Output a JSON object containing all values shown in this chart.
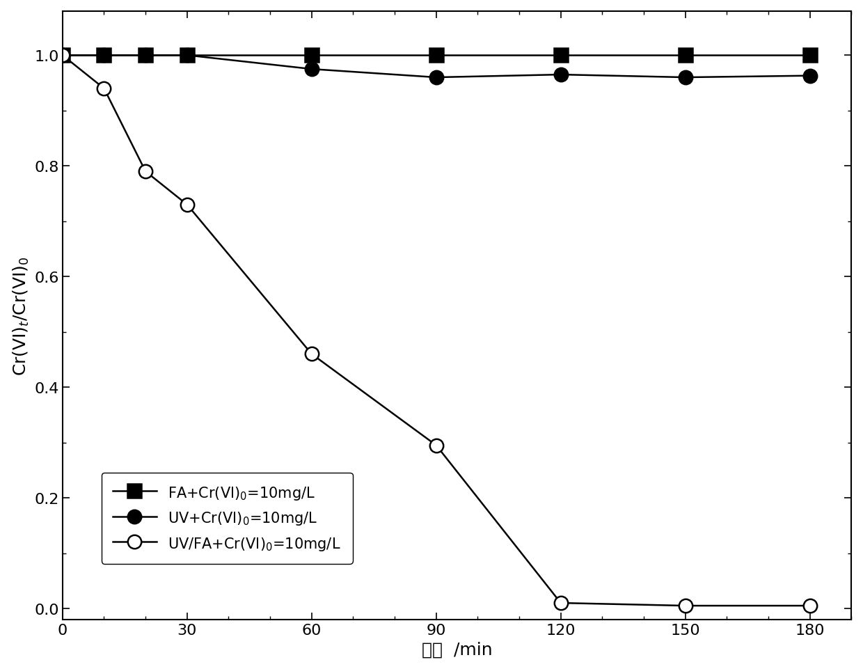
{
  "series": [
    {
      "label": "FA+Cr(VI)$_0$=10mg/L",
      "x": [
        0,
        10,
        20,
        30,
        60,
        90,
        120,
        150,
        180
      ],
      "y": [
        1.0,
        1.0,
        1.0,
        1.0,
        1.0,
        1.0,
        1.0,
        1.0,
        1.0
      ],
      "marker": "s",
      "marker_face": "black",
      "marker_edge": "black",
      "line_color": "black",
      "filled": true
    },
    {
      "label": "UV+Cr(VI)$_0$=10mg/L",
      "x": [
        0,
        10,
        20,
        30,
        60,
        90,
        120,
        150,
        180
      ],
      "y": [
        1.0,
        1.0,
        1.0,
        1.0,
        0.975,
        0.96,
        0.965,
        0.96,
        0.963
      ],
      "marker": "o",
      "marker_face": "black",
      "marker_edge": "black",
      "line_color": "black",
      "filled": true
    },
    {
      "label": "UV/FA+Cr(VI)$_0$=10mg/L",
      "x": [
        0,
        10,
        20,
        30,
        60,
        90,
        120,
        150,
        180
      ],
      "y": [
        1.0,
        0.94,
        0.79,
        0.73,
        0.46,
        0.295,
        0.01,
        0.005,
        0.005
      ],
      "marker": "o",
      "marker_face": "white",
      "marker_edge": "black",
      "line_color": "black",
      "filled": false
    }
  ],
  "xlabel": "时间  /min",
  "ylabel": "Cr(VI)$_t$/Cr(VI)$_0$",
  "xlim": [
    0,
    190
  ],
  "ylim": [
    -0.02,
    1.08
  ],
  "xticks": [
    0,
    30,
    60,
    90,
    120,
    150,
    180
  ],
  "yticks": [
    0.0,
    0.2,
    0.4,
    0.6,
    0.8,
    1.0
  ],
  "figsize": [
    12.4,
    9.62
  ],
  "dpi": 100,
  "marker_size": 14,
  "line_width": 1.8,
  "background_color": "white"
}
